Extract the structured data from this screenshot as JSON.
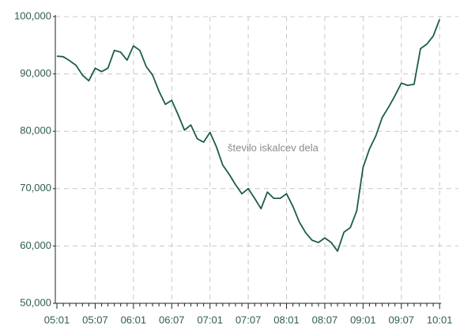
{
  "chart_data": {
    "type": "line",
    "annotation": "število iskalcev dela",
    "categories": [
      "05:01",
      null,
      null,
      null,
      null,
      null,
      "05:07",
      null,
      null,
      null,
      null,
      null,
      "06:01",
      null,
      null,
      null,
      null,
      null,
      "06:07",
      null,
      null,
      null,
      null,
      null,
      "07:01",
      null,
      null,
      null,
      null,
      null,
      "07:07",
      null,
      null,
      null,
      null,
      null,
      "08:01",
      null,
      null,
      null,
      null,
      null,
      "08:07",
      null,
      null,
      null,
      null,
      null,
      "09:01",
      null,
      null,
      null,
      null,
      null,
      "09:07",
      null,
      null,
      null,
      null,
      null,
      "10:01"
    ],
    "series": [
      {
        "name": "število iskalcev dela",
        "color": "#1d5e45",
        "values": [
          93100,
          93000,
          92300,
          91500,
          89800,
          88800,
          91000,
          90400,
          91000,
          94100,
          93800,
          92400,
          94900,
          94100,
          91300,
          89800,
          87000,
          84700,
          85400,
          82900,
          80200,
          81100,
          78700,
          78100,
          79800,
          77300,
          74100,
          72500,
          70700,
          69100,
          70000,
          68300,
          66500,
          69400,
          68300,
          68300,
          69100,
          66900,
          64200,
          62300,
          61000,
          60600,
          61400,
          60600,
          59100,
          62400,
          63200,
          66100,
          73700,
          76900,
          79200,
          82400,
          84200,
          86200,
          88400,
          88000,
          88200,
          94400,
          95200,
          96600,
          99500
        ]
      }
    ],
    "ylim": [
      50000,
      100000
    ],
    "yticks": [
      {
        "value": 50000,
        "label": "50,000"
      },
      {
        "value": 60000,
        "label": "60,000"
      },
      {
        "value": 70000,
        "label": "70,000"
      },
      {
        "value": 80000,
        "label": "80,000"
      },
      {
        "value": 90000,
        "label": "90,000"
      },
      {
        "value": 100000,
        "label": "100,000"
      }
    ],
    "grid": true
  }
}
